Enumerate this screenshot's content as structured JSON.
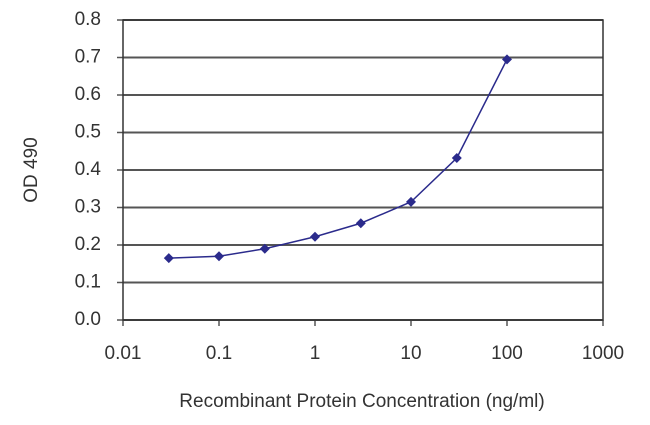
{
  "chart_data": {
    "type": "line",
    "xlabel": "Recombinant Protein Concentration (ng/ml)",
    "ylabel": "OD 490",
    "x": [
      0.03,
      0.1,
      0.3,
      1,
      3,
      10,
      30,
      100
    ],
    "series": [
      {
        "color": "#2b2b8c",
        "values": [
          0.165,
          0.17,
          0.19,
          0.222,
          0.258,
          0.315,
          0.432,
          0.695
        ]
      }
    ],
    "xscale": "log",
    "xlim": [
      0.01,
      1000
    ],
    "xticks": [
      0.01,
      0.1,
      1,
      10,
      100,
      1000
    ],
    "ylim": [
      0,
      0.8
    ],
    "yticks": [
      {
        "value": 0,
        "label": "0.0"
      },
      0.1,
      0.2,
      0.3,
      0.4,
      0.5,
      0.6,
      0.7,
      0.8
    ],
    "grid": true
  }
}
